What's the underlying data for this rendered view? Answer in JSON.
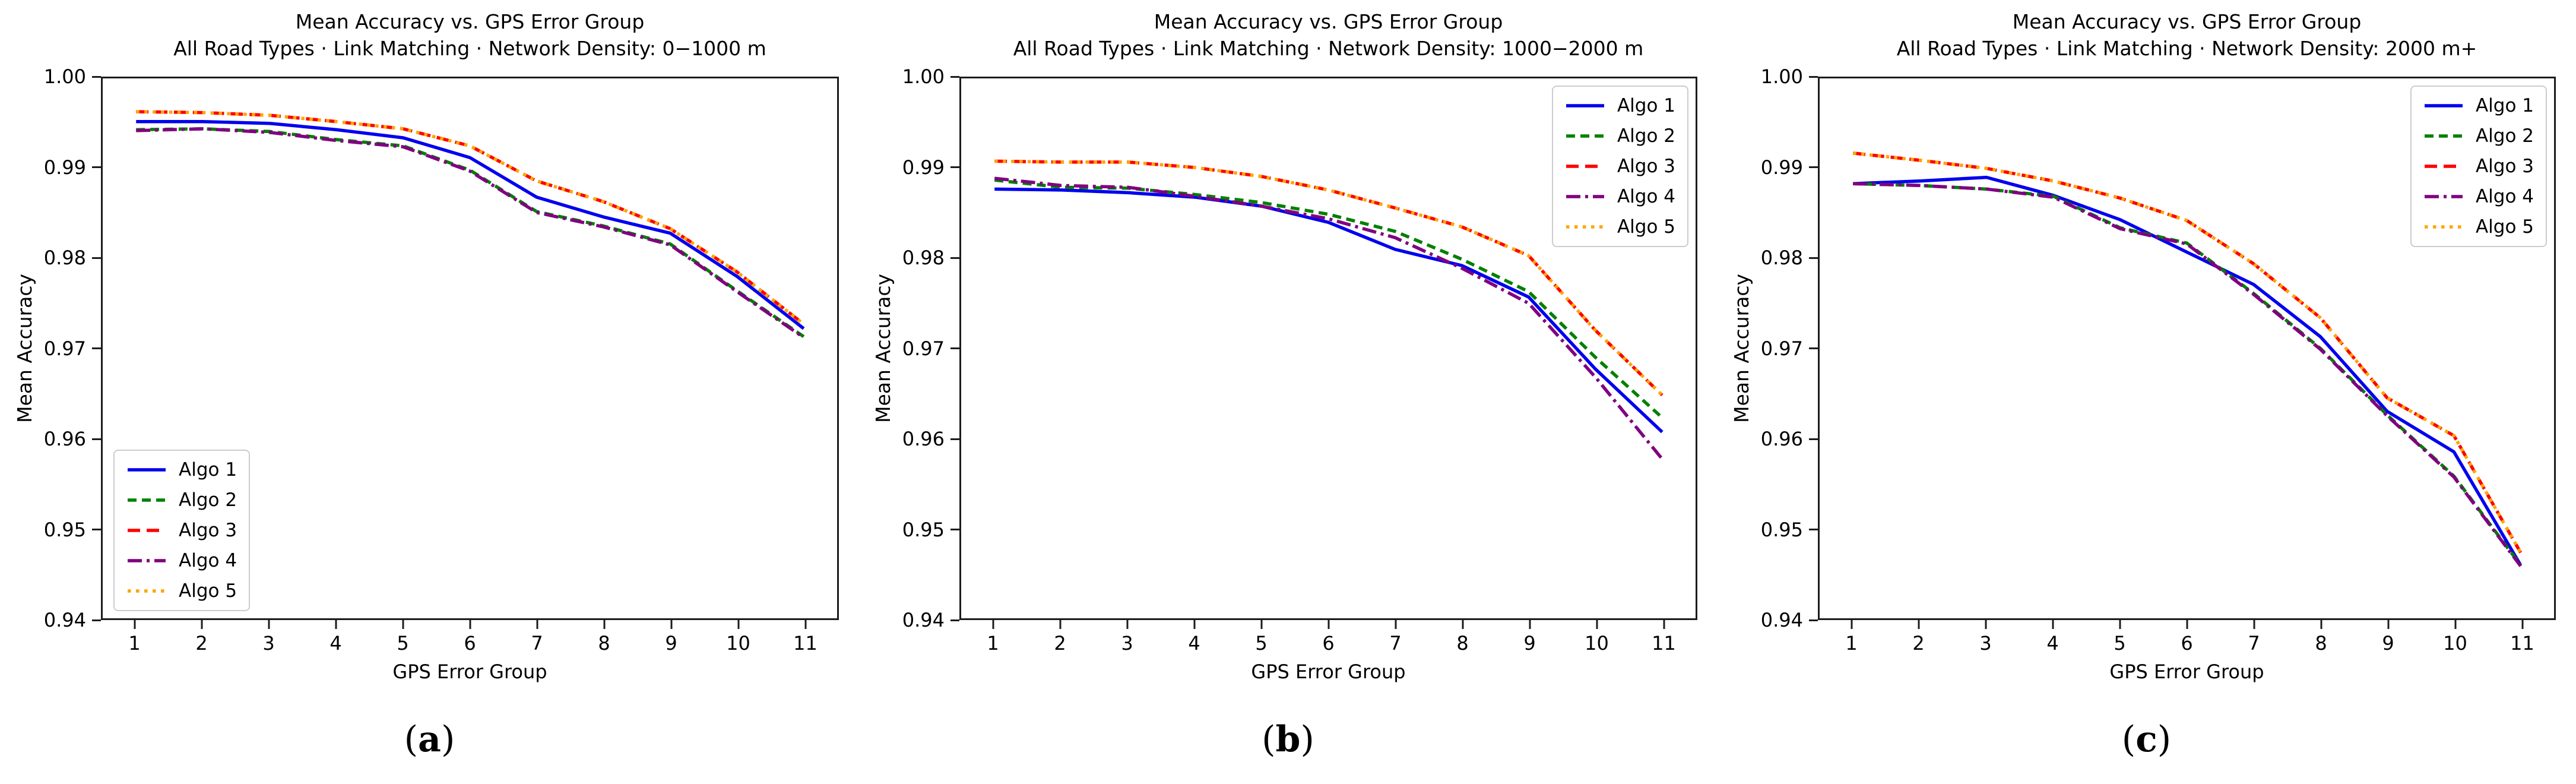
{
  "figure": {
    "background": "#ffffff",
    "spine_color": "#1c1c1c",
    "legend_border_color": "#cccccc"
  },
  "chart_data": [
    {
      "type": "line",
      "caption": {
        "open": "(",
        "letter": "a",
        "close": ")"
      },
      "title": "Mean Accuracy vs. GPS Error Group",
      "subtitle": "All Road Types · Link Matching · Network Density: 0−1000 m",
      "xlabel": "GPS Error Group",
      "ylabel": "Mean Accuracy",
      "x": [
        1,
        2,
        3,
        4,
        5,
        6,
        7,
        8,
        9,
        10,
        11
      ],
      "xticks": [
        "1",
        "2",
        "3",
        "4",
        "5",
        "6",
        "7",
        "8",
        "9",
        "10",
        "11"
      ],
      "yticks": [
        "1.00",
        "0.99",
        "0.98",
        "0.97",
        "0.96",
        "0.95",
        "0.94"
      ],
      "xlim": [
        0.5,
        11.5
      ],
      "ylim": [
        0.94,
        1.0
      ],
      "grid": false,
      "legend_position": "lower-left",
      "series": [
        {
          "name": "Algo 1",
          "color": "#0000ee",
          "style": "solid",
          "values": [
            0.9952,
            0.9952,
            0.995,
            0.9943,
            0.9934,
            0.9912,
            0.9868,
            0.9846,
            0.9828,
            0.978,
            0.9722
          ]
        },
        {
          "name": "Algo 2",
          "color": "#008000",
          "style": "dashed",
          "values": [
            0.9943,
            0.9944,
            0.9941,
            0.9932,
            0.9925,
            0.9898,
            0.9852,
            0.9836,
            0.9816,
            0.9764,
            0.9713
          ]
        },
        {
          "name": "Algo 3",
          "color": "#ff0000",
          "style": "dashed-long",
          "values": [
            0.9963,
            0.9962,
            0.9959,
            0.9952,
            0.9944,
            0.9925,
            0.9886,
            0.9863,
            0.9833,
            0.9785,
            0.9727
          ]
        },
        {
          "name": "Algo 4",
          "color": "#800080",
          "style": "dashdot",
          "values": [
            0.9942,
            0.9944,
            0.994,
            0.9931,
            0.9924,
            0.9897,
            0.9851,
            0.9835,
            0.9815,
            0.9763,
            0.9712
          ]
        },
        {
          "name": "Algo 5",
          "color": "#ffa500",
          "style": "dotted",
          "values": [
            0.9963,
            0.9962,
            0.9959,
            0.9952,
            0.9944,
            0.9925,
            0.9886,
            0.9863,
            0.9833,
            0.9785,
            0.9727
          ]
        }
      ]
    },
    {
      "type": "line",
      "caption": {
        "open": "(",
        "letter": "b",
        "close": ")"
      },
      "title": "Mean Accuracy vs. GPS Error Group",
      "subtitle": "All Road Types · Link Matching · Network Density: 1000−2000 m",
      "xlabel": "GPS Error Group",
      "ylabel": "Mean Accuracy",
      "x": [
        1,
        2,
        3,
        4,
        5,
        6,
        7,
        8,
        9,
        10,
        11
      ],
      "xticks": [
        "1",
        "2",
        "3",
        "4",
        "5",
        "6",
        "7",
        "8",
        "9",
        "10",
        "11"
      ],
      "yticks": [
        "1.00",
        "0.99",
        "0.98",
        "0.97",
        "0.96",
        "0.95",
        "0.94"
      ],
      "xlim": [
        0.5,
        11.5
      ],
      "ylim": [
        0.94,
        1.0
      ],
      "grid": false,
      "legend_position": "upper-right",
      "series": [
        {
          "name": "Algo 1",
          "color": "#0000ee",
          "style": "solid",
          "values": [
            0.9877,
            0.9876,
            0.9873,
            0.9868,
            0.9858,
            0.984,
            0.981,
            0.9792,
            0.9757,
            0.9677,
            0.9607
          ]
        },
        {
          "name": "Algo 2",
          "color": "#008000",
          "style": "dashed",
          "values": [
            0.9887,
            0.9879,
            0.9878,
            0.9871,
            0.9862,
            0.9849,
            0.983,
            0.9799,
            0.9763,
            0.969,
            0.9623
          ]
        },
        {
          "name": "Algo 3",
          "color": "#ff0000",
          "style": "dashed-long",
          "values": [
            0.9908,
            0.9907,
            0.9907,
            0.9901,
            0.9891,
            0.9876,
            0.9856,
            0.9835,
            0.9803,
            0.972,
            0.9648
          ]
        },
        {
          "name": "Algo 4",
          "color": "#800080",
          "style": "dashdot",
          "values": [
            0.9889,
            0.9881,
            0.9879,
            0.9869,
            0.9858,
            0.9844,
            0.9823,
            0.9789,
            0.975,
            0.9668,
            0.9577
          ]
        },
        {
          "name": "Algo 5",
          "color": "#ffa500",
          "style": "dotted",
          "values": [
            0.9908,
            0.9907,
            0.9907,
            0.9901,
            0.9891,
            0.9876,
            0.9856,
            0.9835,
            0.9803,
            0.972,
            0.9648
          ]
        }
      ]
    },
    {
      "type": "line",
      "caption": {
        "open": "(",
        "letter": "c",
        "close": ")"
      },
      "title": "Mean Accuracy vs. GPS Error Group",
      "subtitle": "All Road Types · Link Matching · Network Density: 2000 m+",
      "xlabel": "GPS Error Group",
      "ylabel": "Mean Accuracy",
      "x": [
        1,
        2,
        3,
        4,
        5,
        6,
        7,
        8,
        9,
        10,
        11
      ],
      "xticks": [
        "1",
        "2",
        "3",
        "4",
        "5",
        "6",
        "7",
        "8",
        "9",
        "10",
        "11"
      ],
      "yticks": [
        "1.00",
        "0.99",
        "0.98",
        "0.97",
        "0.96",
        "0.95",
        "0.94"
      ],
      "xlim": [
        0.5,
        11.5
      ],
      "ylim": [
        0.94,
        1.0
      ],
      "grid": false,
      "legend_position": "upper-right",
      "series": [
        {
          "name": "Algo 1",
          "color": "#0000ee",
          "style": "solid",
          "values": [
            0.9883,
            0.9886,
            0.989,
            0.987,
            0.9843,
            0.9807,
            0.9771,
            0.9713,
            0.963,
            0.9585,
            0.9459
          ]
        },
        {
          "name": "Algo 2",
          "color": "#008000",
          "style": "dashed",
          "values": [
            0.9883,
            0.9881,
            0.9877,
            0.9869,
            0.9834,
            0.9817,
            0.9761,
            0.97,
            0.9626,
            0.9558,
            0.9459
          ]
        },
        {
          "name": "Algo 3",
          "color": "#ff0000",
          "style": "dashed-long",
          "values": [
            0.9917,
            0.9909,
            0.99,
            0.9886,
            0.9867,
            0.9842,
            0.9794,
            0.9734,
            0.9645,
            0.9603,
            0.9473
          ]
        },
        {
          "name": "Algo 4",
          "color": "#800080",
          "style": "dashdot",
          "values": [
            0.9883,
            0.9881,
            0.9877,
            0.9868,
            0.9833,
            0.9816,
            0.976,
            0.9699,
            0.9625,
            0.9557,
            0.9458
          ]
        },
        {
          "name": "Algo 5",
          "color": "#ffa500",
          "style": "dotted",
          "values": [
            0.9917,
            0.9909,
            0.99,
            0.9886,
            0.9867,
            0.9842,
            0.9794,
            0.9734,
            0.9645,
            0.9603,
            0.9473
          ]
        }
      ]
    }
  ]
}
